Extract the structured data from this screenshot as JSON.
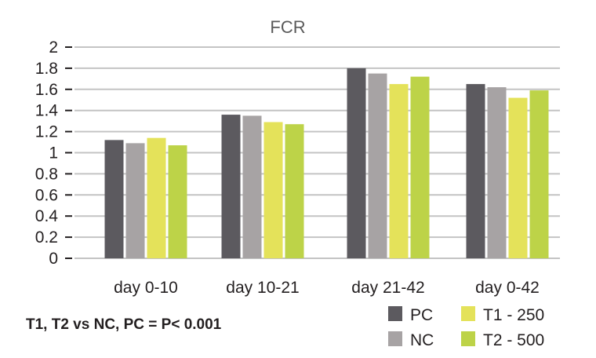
{
  "chart_data": {
    "type": "bar",
    "title": "FCR",
    "xlabel": "",
    "ylabel": "",
    "ylim": [
      0,
      2
    ],
    "yticks": [
      "0",
      "0.2",
      "0.4",
      "0.6",
      "0.8",
      "1",
      "1.2",
      "1.4",
      "1.6",
      "1.8",
      "2"
    ],
    "grid": true,
    "legend_position": "bottom-right",
    "categories": [
      "day 0-10",
      "day 10-21",
      "day 21-42",
      "day 0-42"
    ],
    "series": [
      {
        "name": "PC",
        "color": "#5c5a5f",
        "values": [
          1.12,
          1.36,
          1.8,
          1.65
        ]
      },
      {
        "name": "NC",
        "color": "#a7a3a4",
        "values": [
          1.09,
          1.35,
          1.75,
          1.62
        ]
      },
      {
        "name": "T1 - 250",
        "color": "#e4e25a",
        "values": [
          1.14,
          1.29,
          1.65,
          1.52
        ]
      },
      {
        "name": "T2 - 500",
        "color": "#bdd348",
        "values": [
          1.07,
          1.27,
          1.72,
          1.59
        ]
      }
    ],
    "annotation": "T1, T2 vs NC, PC = P< 0.001"
  }
}
